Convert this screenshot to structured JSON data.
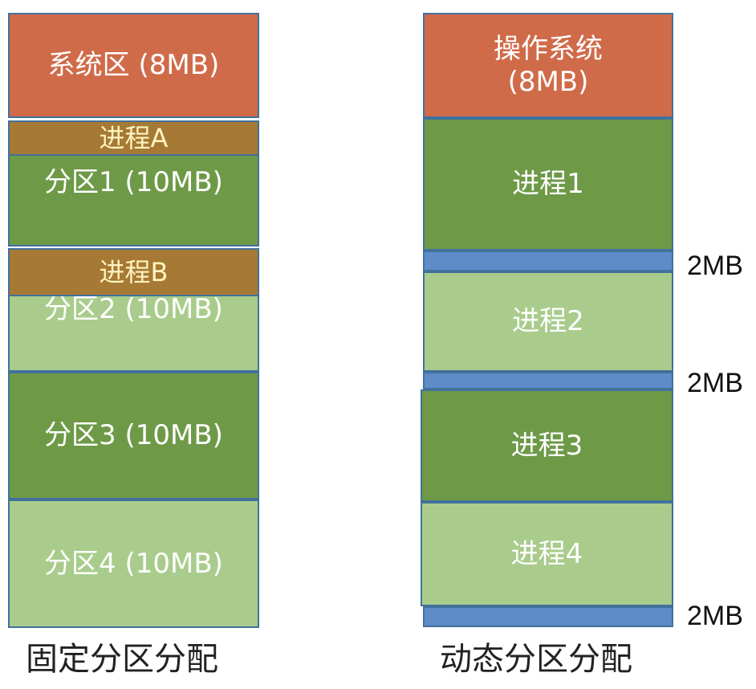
{
  "fixed": {
    "caption": "固定分区分配",
    "system": "系统区 (8MB)",
    "process_a": "进程A",
    "partition1": "分区1 (10MB)",
    "process_b": "进程B",
    "partition2": "分区2 (10MB)",
    "partition3": "分区3 (10MB)",
    "partition4": "分区4 (10MB)"
  },
  "dynamic": {
    "caption": "动态分区分配",
    "os_line1": "操作系统",
    "os_line2": "(8MB)",
    "process1": "进程1",
    "process2": "进程2",
    "process3": "进程3",
    "process4": "进程4",
    "gap1": "2MB",
    "gap2": "2MB",
    "gap3": "2MB"
  },
  "colors": {
    "system": "#d06b4a",
    "dark_green": "#6e9a48",
    "light_green": "#a9cc8c",
    "process_fixed": "#a67a34",
    "free_gap": "#5e8cc8"
  }
}
